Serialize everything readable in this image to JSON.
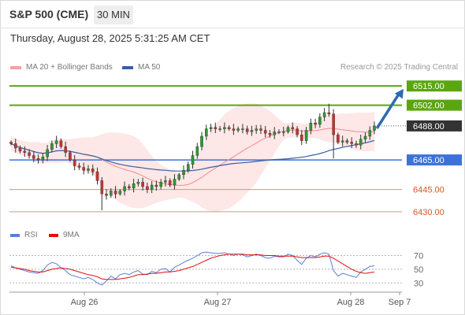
{
  "header": {
    "symbol": "S&P 500 (CME)",
    "interval": "30 MIN",
    "datetime": "Thursday, August 28, 2025 5:31:25 AM CET"
  },
  "legend": {
    "ma20_bb": "MA 20 + Bollinger Bands",
    "ma50": "MA 50",
    "credit": "Research © 2025 Trading Central",
    "rsi": "RSI",
    "rsi_ma": "9MA"
  },
  "colors": {
    "resistance": "#5aa60f",
    "support": "#3b73d9",
    "bear_level": "#e88a8a",
    "ma20": "#f08c8c",
    "ma50": "#3a5f9e",
    "bands_fill": "#fde3e3",
    "bull_candle": "#2e9a2e",
    "bear_candle": "#c93333",
    "rsi": "#5b7fd6",
    "rsi_ma": "#e01010",
    "last_price_bg": "#333333",
    "arrow": "#2d6ab0"
  },
  "chart_data": {
    "type": "candlestick",
    "price_ylim": [
      6423,
      6522
    ],
    "levels": [
      {
        "label": "6515.00",
        "value": 6515.0,
        "kind": "resistance"
      },
      {
        "label": "6502.00",
        "value": 6502.0,
        "kind": "resistance"
      },
      {
        "label": "6488.00",
        "value": 6488.0,
        "kind": "last"
      },
      {
        "label": "6465.00",
        "value": 6465.0,
        "kind": "support"
      },
      {
        "label": "6445.00",
        "value": 6445.0,
        "kind": "bear"
      },
      {
        "label": "6430.00",
        "value": 6430.0,
        "kind": "bear"
      }
    ],
    "x_tick_labels": [
      "Aug 26",
      "Aug 27",
      "Aug 28",
      "Sep 7"
    ],
    "close": [
      6476,
      6473,
      6471,
      6470,
      6468,
      6466,
      6465,
      6467,
      6472,
      6476,
      6478,
      6474,
      6470,
      6465,
      6461,
      6460,
      6458,
      6459,
      6457,
      6451,
      6442,
      6441,
      6444,
      6442,
      6444,
      6447,
      6446,
      6449,
      6450,
      6447,
      6445,
      6448,
      6447,
      6450,
      6451,
      6448,
      6452,
      6455,
      6458,
      6462,
      6468,
      6474,
      6481,
      6486,
      6487,
      6486,
      6486,
      6487,
      6486,
      6485,
      6486,
      6486,
      6484,
      6485,
      6486,
      6485,
      6483,
      6482,
      6484,
      6484,
      6484,
      6487,
      6486,
      6482,
      6478,
      6485,
      6490,
      6489,
      6494,
      6497,
      6496,
      6482,
      6477,
      6478,
      6477,
      6476,
      6475,
      6479,
      6481,
      6485,
      6488
    ],
    "rsi_ticks": [
      70,
      50,
      30
    ],
    "rsi": [
      55,
      52,
      50,
      48,
      46,
      45,
      44,
      48,
      56,
      60,
      58,
      52,
      48,
      42,
      40,
      38,
      36,
      38,
      35,
      30,
      27,
      33,
      40,
      36,
      42,
      44,
      42,
      46,
      48,
      43,
      42,
      47,
      45,
      50,
      51,
      46,
      53,
      56,
      60,
      63,
      66,
      70,
      74,
      75,
      74,
      73,
      73,
      74,
      72,
      70,
      72,
      71,
      68,
      70,
      72,
      70,
      67,
      66,
      69,
      68,
      68,
      72,
      70,
      63,
      57,
      66,
      70,
      68,
      72,
      74,
      72,
      48,
      40,
      44,
      42,
      40,
      38,
      46,
      50,
      54,
      55
    ],
    "rsi_ma": [
      53,
      52,
      51,
      50,
      48,
      47,
      46,
      46,
      48,
      50,
      51,
      52,
      51,
      50,
      48,
      46,
      44,
      42,
      41,
      39,
      36,
      35,
      35,
      35,
      36,
      37,
      38,
      40,
      42,
      42,
      43,
      44,
      44,
      45,
      46,
      46,
      47,
      48,
      50,
      52,
      54,
      57,
      60,
      63,
      66,
      68,
      70,
      71,
      72,
      72,
      72,
      72,
      71,
      71,
      71,
      71,
      70,
      70,
      70,
      69,
      69,
      69,
      69,
      68,
      67,
      67,
      67,
      67,
      68,
      69,
      69,
      66,
      62,
      58,
      54,
      50,
      47,
      45,
      44,
      45,
      46
    ],
    "rsi_ylim": [
      20,
      82
    ]
  }
}
